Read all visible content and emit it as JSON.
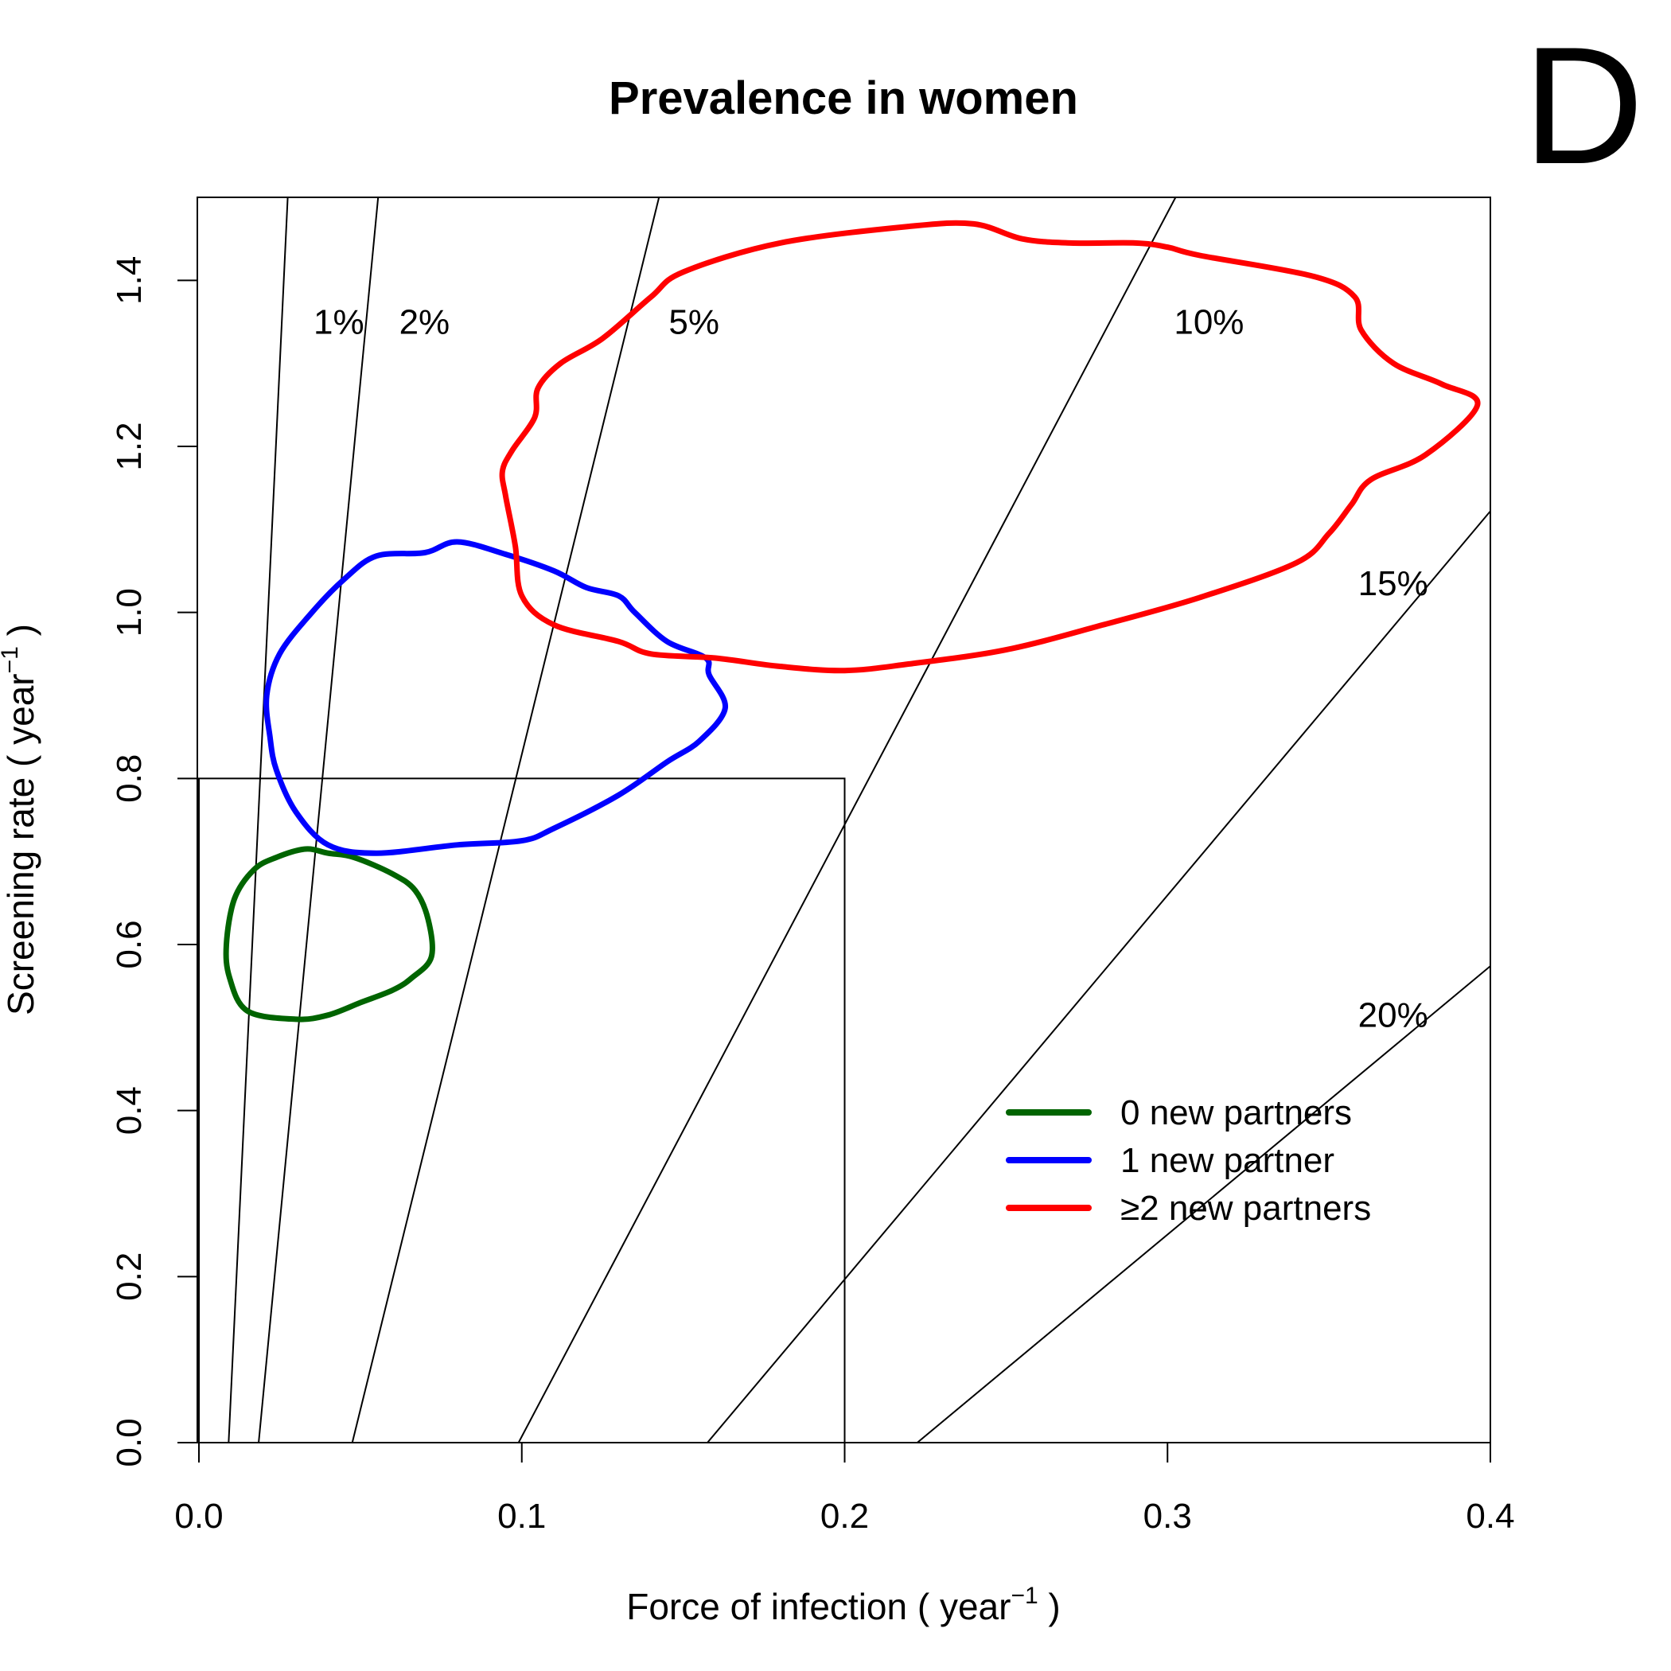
{
  "chart_data": {
    "type": "line",
    "title": "Prevalence in women",
    "panel_letter": "D",
    "xlabel": "Force of infection ( year",
    "ylabel": "Screening rate ( year",
    "axis_unit_exponent": "−1",
    "axis_label_close": " )",
    "xlim": [
      0.0,
      0.4
    ],
    "ylim": [
      0.0,
      1.5
    ],
    "x_ticks": [
      0.0,
      0.1,
      0.2,
      0.3,
      0.4
    ],
    "x_tick_labels": [
      "0.0",
      "0.1",
      "0.2",
      "0.3",
      "0.4"
    ],
    "y_ticks": [
      0.0,
      0.2,
      0.4,
      0.6,
      0.8,
      1.0,
      1.2,
      1.4
    ],
    "y_tick_labels": [
      "0.0",
      "0.2",
      "0.4",
      "0.6",
      "0.8",
      "1.0",
      "1.2",
      "1.4"
    ],
    "grid": false,
    "reference_box": {
      "x": [
        0.0,
        0.2
      ],
      "y": [
        0.0,
        0.8
      ]
    },
    "isolines": [
      {
        "label": "1%",
        "points": [
          [
            0.0092,
            0.0
          ],
          [
            0.0275,
            1.5
          ]
        ],
        "label_at": [
          0.0355,
          1.35
        ]
      },
      {
        "label": "2%",
        "points": [
          [
            0.0185,
            0.0
          ],
          [
            0.0555,
            1.5
          ]
        ],
        "label_at": [
          0.062,
          1.35
        ]
      },
      {
        "label": "5%",
        "points": [
          [
            0.0475,
            0.0
          ],
          [
            0.1425,
            1.5
          ]
        ],
        "label_at": [
          0.1455,
          1.35
        ]
      },
      {
        "label": "10%",
        "points": [
          [
            0.099,
            0.0
          ],
          [
            0.3025,
            1.5
          ]
        ],
        "label_at": [
          0.302,
          1.35
        ]
      },
      {
        "label": "15%",
        "points": [
          [
            0.1575,
            0.0
          ],
          [
            0.4,
            1.122
          ]
        ],
        "label_at": [
          0.359,
          1.035
        ]
      },
      {
        "label": "20%",
        "points": [
          [
            0.2225,
            0.0
          ],
          [
            0.4,
            0.574
          ]
        ],
        "label_at": [
          0.359,
          0.515
        ]
      }
    ],
    "series": [
      {
        "name": "0 new partners",
        "color": "#006400",
        "points": [
          [
            0.015,
            0.52
          ],
          [
            0.03,
            0.51
          ],
          [
            0.04,
            0.515
          ],
          [
            0.05,
            0.53
          ],
          [
            0.06,
            0.545
          ],
          [
            0.066,
            0.56
          ],
          [
            0.072,
            0.585
          ],
          [
            0.071,
            0.63
          ],
          [
            0.067,
            0.665
          ],
          [
            0.06,
            0.685
          ],
          [
            0.048,
            0.705
          ],
          [
            0.04,
            0.71
          ],
          [
            0.033,
            0.715
          ],
          [
            0.024,
            0.705
          ],
          [
            0.017,
            0.69
          ],
          [
            0.011,
            0.655
          ],
          [
            0.0085,
            0.6
          ],
          [
            0.0095,
            0.56
          ],
          [
            0.015,
            0.52
          ]
        ]
      },
      {
        "name": "1 new partner",
        "color": "#0000ff",
        "points": [
          [
            0.024,
            0.81
          ],
          [
            0.03,
            0.76
          ],
          [
            0.04,
            0.72
          ],
          [
            0.055,
            0.71
          ],
          [
            0.08,
            0.72
          ],
          [
            0.1,
            0.725
          ],
          [
            0.11,
            0.74
          ],
          [
            0.13,
            0.78
          ],
          [
            0.145,
            0.82
          ],
          [
            0.155,
            0.845
          ],
          [
            0.163,
            0.885
          ],
          [
            0.158,
            0.925
          ],
          [
            0.157,
            0.945
          ],
          [
            0.145,
            0.965
          ],
          [
            0.135,
            1.0
          ],
          [
            0.13,
            1.02
          ],
          [
            0.12,
            1.03
          ],
          [
            0.11,
            1.05
          ],
          [
            0.095,
            1.07
          ],
          [
            0.08,
            1.085
          ],
          [
            0.07,
            1.072
          ],
          [
            0.055,
            1.068
          ],
          [
            0.045,
            1.04
          ],
          [
            0.035,
            1.0
          ],
          [
            0.025,
            0.95
          ],
          [
            0.021,
            0.9
          ],
          [
            0.022,
            0.85
          ],
          [
            0.024,
            0.81
          ]
        ]
      },
      {
        "name": "≥2 new partners",
        "color": "#ff0000",
        "points": [
          [
            0.095,
            1.14
          ],
          [
            0.098,
            1.08
          ],
          [
            0.1,
            1.02
          ],
          [
            0.11,
            0.985
          ],
          [
            0.13,
            0.965
          ],
          [
            0.14,
            0.95
          ],
          [
            0.16,
            0.945
          ],
          [
            0.18,
            0.935
          ],
          [
            0.2,
            0.93
          ],
          [
            0.22,
            0.938
          ],
          [
            0.25,
            0.955
          ],
          [
            0.28,
            0.985
          ],
          [
            0.31,
            1.018
          ],
          [
            0.34,
            1.06
          ],
          [
            0.35,
            1.095
          ],
          [
            0.357,
            1.13
          ],
          [
            0.363,
            1.16
          ],
          [
            0.38,
            1.19
          ],
          [
            0.396,
            1.25
          ],
          [
            0.385,
            1.275
          ],
          [
            0.37,
            1.3
          ],
          [
            0.36,
            1.34
          ],
          [
            0.358,
            1.38
          ],
          [
            0.345,
            1.405
          ],
          [
            0.31,
            1.43
          ],
          [
            0.3,
            1.44
          ],
          [
            0.29,
            1.445
          ],
          [
            0.27,
            1.445
          ],
          [
            0.255,
            1.45
          ],
          [
            0.24,
            1.468
          ],
          [
            0.22,
            1.465
          ],
          [
            0.18,
            1.445
          ],
          [
            0.15,
            1.41
          ],
          [
            0.14,
            1.38
          ],
          [
            0.125,
            1.33
          ],
          [
            0.112,
            1.3
          ],
          [
            0.105,
            1.27
          ],
          [
            0.104,
            1.235
          ],
          [
            0.097,
            1.195
          ],
          [
            0.094,
            1.17
          ],
          [
            0.095,
            1.14
          ]
        ]
      }
    ],
    "legend": {
      "placement": "lower-right"
    }
  }
}
